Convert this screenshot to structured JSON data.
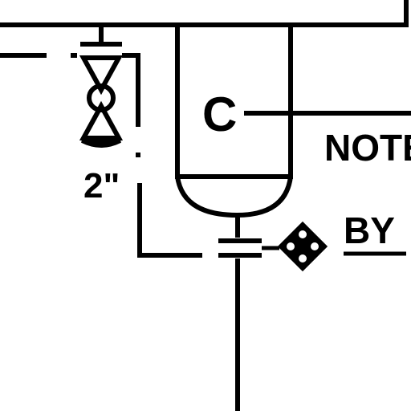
{
  "diagram": {
    "vessel_letter": "C",
    "valve_size": "2\"",
    "note_label": "NOTE",
    "by_label": "BY"
  },
  "colors": {
    "line": "#000000",
    "background": "#ffffff"
  },
  "icons": [
    "globe-valve-icon",
    "instrument-diamond-icon",
    "flange-icon"
  ]
}
